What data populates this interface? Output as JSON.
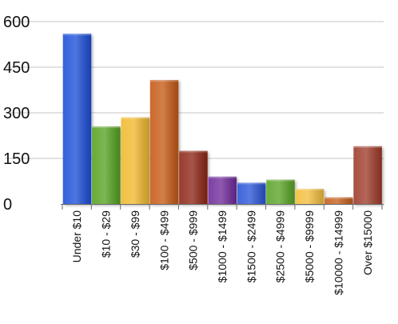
{
  "chart_data": {
    "type": "bar",
    "categories": [
      "Under $10",
      "$10 - $29",
      "$30 - $99",
      "$100 - $499",
      "$500 - $999",
      "$1000 - $1499",
      "$1500 - $2499",
      "$2500 - $4999",
      "$5000 - $9999",
      "$10000 - $14999",
      "Over $15000"
    ],
    "values": [
      560,
      255,
      285,
      408,
      175,
      90,
      70,
      80,
      50,
      22,
      190
    ],
    "colors": [
      "#1f4fd8",
      "#57a321",
      "#f0b92f",
      "#c65a16",
      "#8e2512",
      "#6f2a9a",
      "#2c55d6",
      "#5aa428",
      "#f2be3e",
      "#c45e1f",
      "#9e3b2c"
    ],
    "title": "",
    "xlabel": "",
    "ylabel": "",
    "ylim": [
      0,
      600
    ],
    "yticks": [
      "0",
      "150",
      "300",
      "450",
      "600"
    ],
    "grid": true,
    "legend": "none"
  }
}
